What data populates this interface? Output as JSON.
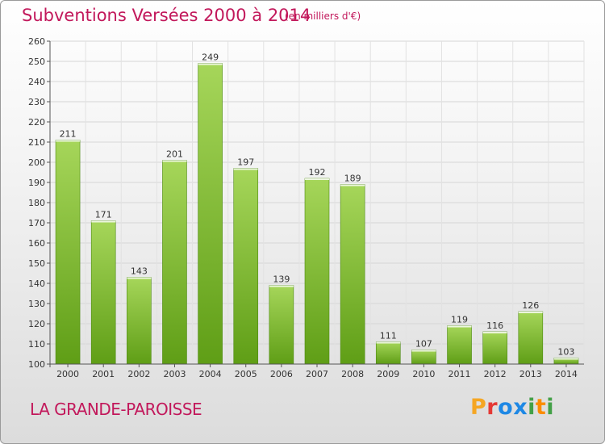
{
  "title": "Subventions Versées 2000 à 2014",
  "subtitle": "(en milliers d'€)",
  "location": "LA GRANDE-PAROISSE",
  "logo": {
    "letters": [
      "P",
      "r",
      "o",
      "x",
      "i",
      "t",
      "i"
    ],
    "colors": [
      "#f5a623",
      "#e53935",
      "#1e88e5",
      "#1e88e5",
      "#43a047",
      "#fb8c00",
      "#43a047"
    ]
  },
  "colors": {
    "bar_top": "#a6d65a",
    "bar_bottom": "#5f9e16",
    "title": "#c2185b"
  },
  "chart_data": {
    "type": "bar",
    "categories": [
      "2000",
      "2001",
      "2002",
      "2003",
      "2004",
      "2005",
      "2006",
      "2007",
      "2008",
      "2009",
      "2010",
      "2011",
      "2012",
      "2013",
      "2014"
    ],
    "values": [
      211,
      171,
      143,
      201,
      249,
      197,
      139,
      192,
      189,
      111,
      107,
      119,
      116,
      126,
      103
    ],
    "title": "Subventions Versées 2000 à 2014",
    "subtitle": "(en milliers d'€)",
    "ylim": [
      100,
      260
    ],
    "yticks": [
      100,
      110,
      120,
      130,
      140,
      150,
      160,
      170,
      180,
      190,
      200,
      210,
      220,
      230,
      240,
      250,
      260
    ],
    "grid": true,
    "legend": "none"
  }
}
